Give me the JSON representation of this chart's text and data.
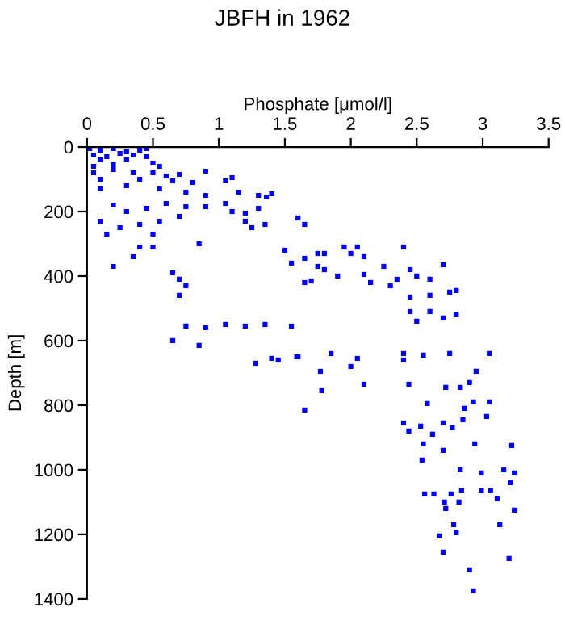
{
  "chart_data": {
    "type": "scatter",
    "title": "JBFH in 1962",
    "xlabel": "Phosphate [μmol/l]",
    "ylabel": "Depth [m]",
    "xlim": [
      0,
      3.5
    ],
    "xticks": [
      0,
      0.5,
      1,
      1.5,
      2,
      2.5,
      3,
      3.5
    ],
    "ylim": [
      1400,
      0
    ],
    "yticks": [
      0,
      200,
      400,
      600,
      800,
      1000,
      1200,
      1400
    ],
    "grid": false,
    "marker": "square",
    "series": [
      {
        "color": "#0000ff",
        "x": [
          0.02,
          0.1,
          0.2,
          0.3,
          0.4,
          0.45,
          0.05,
          0.15,
          0.25,
          0.35,
          0.1,
          0.3,
          0.45,
          0.5,
          0.55,
          0.05,
          0.2,
          0.05,
          0.2,
          0.35,
          0.5,
          0.6,
          0.7,
          0.9,
          0.1,
          0.4,
          0.65,
          0.8,
          1.05,
          1.1,
          0.1,
          0.3,
          0.55,
          0.75,
          0.9,
          1.15,
          1.3,
          1.4,
          1.36,
          0.2,
          0.3,
          0.45,
          0.6,
          0.75,
          0.9,
          1.05,
          1.1,
          1.2,
          1.3,
          0.1,
          0.25,
          0.4,
          0.55,
          0.7,
          1.2,
          1.25,
          1.35,
          1.6,
          1.65,
          0.15,
          0.5,
          0.85,
          0.2,
          0.35,
          0.4,
          0.65,
          0.7,
          0.75,
          0.7,
          0.5,
          1.5,
          1.55,
          1.65,
          1.75,
          1.8,
          0.75,
          0.9,
          1.05,
          1.2,
          1.35,
          1.55,
          0.65,
          0.85,
          1.4,
          1.6,
          1.85,
          2.05,
          2.4,
          2.55,
          2.75,
          3.05,
          1.95,
          2.05,
          2.4,
          2.0,
          2.1,
          1.65,
          1.75,
          1.8,
          2.1,
          2.25,
          2.35,
          2.45,
          2.6,
          2.7,
          2.5,
          2.15,
          2.3,
          2.8,
          2.75,
          2.6,
          2.45,
          1.7,
          1.9,
          2.45,
          2.6,
          2.5,
          2.7,
          2.8,
          1.28,
          1.45,
          1.59,
          1.77,
          2.0,
          2.1,
          2.4,
          2.44,
          1.78,
          1.65,
          2.95,
          2.9,
          2.72,
          2.83,
          2.58,
          2.86,
          2.93,
          3.05,
          3.03,
          2.85,
          2.4,
          2.53,
          2.7,
          2.77,
          2.44,
          2.62,
          2.55,
          2.7,
          2.94,
          3.22,
          2.54,
          2.83,
          2.99,
          3.16,
          3.21,
          3.24,
          2.56,
          2.63,
          2.76,
          2.84,
          2.99,
          3.06,
          3.11,
          2.71,
          2.82,
          2.72,
          3.24,
          3.13,
          2.78,
          2.8,
          2.67,
          2.7,
          3.2,
          2.9,
          2.93
        ],
        "values": [
          5,
          10,
          5,
          15,
          10,
          5,
          25,
          30,
          20,
          25,
          40,
          40,
          30,
          50,
          60,
          60,
          55,
          80,
          70,
          80,
          80,
          90,
          85,
          75,
          100,
          100,
          105,
          110,
          105,
          95,
          130,
          120,
          130,
          140,
          150,
          140,
          150,
          145,
          155,
          180,
          200,
          190,
          175,
          185,
          185,
          175,
          200,
          205,
          190,
          230,
          250,
          240,
          230,
          215,
          230,
          250,
          240,
          220,
          240,
          270,
          270,
          300,
          370,
          340,
          310,
          390,
          410,
          430,
          460,
          310,
          320,
          360,
          420,
          370,
          330,
          555,
          560,
          550,
          555,
          550,
          555,
          600,
          615,
          655,
          650,
          640,
          655,
          640,
          645,
          640,
          640,
          310,
          310,
          310,
          330,
          340,
          345,
          330,
          380,
          395,
          370,
          410,
          380,
          410,
          365,
          400,
          420,
          430,
          445,
          450,
          460,
          465,
          415,
          400,
          510,
          510,
          540,
          530,
          520,
          670,
          660,
          650,
          695,
          680,
          735,
          660,
          735,
          755,
          815,
          695,
          730,
          745,
          745,
          795,
          810,
          790,
          790,
          835,
          845,
          855,
          865,
          855,
          870,
          880,
          890,
          920,
          940,
          920,
          925,
          970,
          1000,
          1010,
          1000,
          1040,
          1010,
          1075,
          1075,
          1075,
          1065,
          1065,
          1065,
          1090,
          1100,
          1100,
          1120,
          1125,
          1170,
          1170,
          1195,
          1205,
          1255,
          1275,
          1310,
          1375
        ]
      }
    ]
  }
}
